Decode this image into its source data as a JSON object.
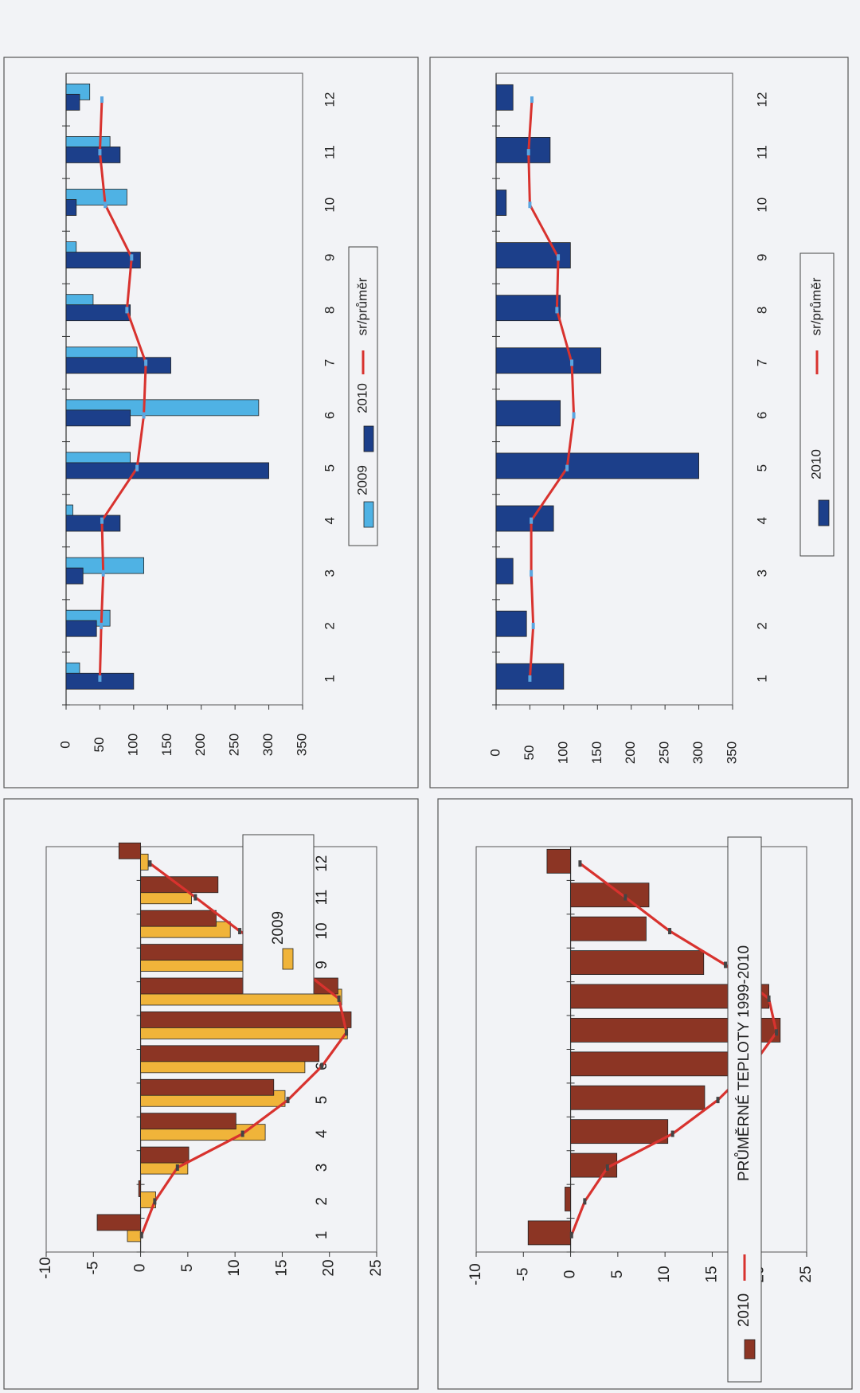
{
  "chart_data": [
    {
      "type": "bar",
      "categories": [
        "1",
        "2",
        "3",
        "4",
        "5",
        "6",
        "7",
        "8",
        "9",
        "10",
        "11",
        "12"
      ],
      "series": [
        {
          "name": "2009",
          "type": "bar",
          "values": [
            -1.4,
            1.6,
            5.0,
            13.2,
            15.3,
            17.4,
            21.9,
            21.3,
            17.0,
            9.5,
            5.4,
            0.8
          ]
        },
        {
          "name": "",
          "type": "bar",
          "values": [
            -4.6,
            -0.2,
            5.1,
            10.1,
            14.1,
            18.9,
            22.3,
            20.9,
            14.2,
            8.0,
            8.2,
            -2.3
          ]
        },
        {
          "name": "",
          "type": "line",
          "values": [
            0.1,
            1.5,
            3.9,
            10.8,
            15.6,
            19.2,
            21.8,
            21.0,
            16.4,
            10.5,
            5.8,
            1.0
          ]
        }
      ],
      "ylim": [
        -10,
        25
      ],
      "yticks": [
        "-10",
        "-5",
        "0",
        "5",
        "10",
        "15",
        "20",
        "25"
      ],
      "orientation": "rotated-90-ccw",
      "legend_position": "top-right"
    },
    {
      "type": "bar",
      "categories": [
        "1",
        "2",
        "3",
        "4",
        "5",
        "6",
        "7",
        "8",
        "9",
        "10",
        "11",
        "12"
      ],
      "series": [
        {
          "name": "2010",
          "type": "bar",
          "values": [
            -4.5,
            -0.6,
            4.9,
            10.3,
            14.2,
            18.9,
            22.2,
            21.0,
            14.1,
            8.0,
            8.3,
            -2.5
          ]
        },
        {
          "name": "PRŮMĚRNÉ TEPLOTY 1999-2010",
          "type": "line",
          "values": [
            0.1,
            1.5,
            3.9,
            10.8,
            15.6,
            19.2,
            21.8,
            21.0,
            16.4,
            10.5,
            5.8,
            1.0
          ]
        }
      ],
      "ylim": [
        -10,
        25
      ],
      "yticks": [
        "-10",
        "-5",
        "0",
        "5",
        "10",
        "15",
        "20",
        "25"
      ],
      "orientation": "rotated-90-ccw",
      "legend_position": "bottom"
    },
    {
      "type": "bar",
      "categories": [
        "1",
        "2",
        "3",
        "4",
        "5",
        "6",
        "7",
        "8",
        "9",
        "10",
        "11",
        "12"
      ],
      "series": [
        {
          "name": "2009",
          "type": "bar",
          "values": [
            20,
            65,
            115,
            10,
            95,
            285,
            105,
            40,
            15,
            90,
            65,
            35
          ]
        },
        {
          "name": "2010",
          "type": "bar",
          "values": [
            100,
            45,
            25,
            80,
            300,
            95,
            155,
            95,
            110,
            15,
            80,
            20
          ]
        },
        {
          "name": "sr/průměr",
          "type": "line",
          "values": [
            50,
            52,
            55,
            53,
            105,
            115,
            118,
            90,
            97,
            58,
            50,
            53
          ]
        }
      ],
      "ylim": [
        0,
        350
      ],
      "yticks": [
        "0",
        "50",
        "100",
        "150",
        "200",
        "250",
        "300",
        "350"
      ],
      "orientation": "rotated-90-ccw",
      "legend_position": "middle"
    },
    {
      "type": "bar",
      "categories": [
        "1",
        "2",
        "3",
        "4",
        "5",
        "6",
        "7",
        "8",
        "9",
        "10",
        "11",
        "12"
      ],
      "series": [
        {
          "name": "2010",
          "type": "bar",
          "values": [
            100,
            45,
            25,
            85,
            300,
            95,
            155,
            95,
            110,
            15,
            80,
            25
          ]
        },
        {
          "name": "sr/průměr",
          "type": "line",
          "values": [
            50,
            55,
            52,
            52,
            105,
            115,
            112,
            90,
            92,
            50,
            48,
            53
          ]
        }
      ],
      "ylim": [
        0,
        350
      ],
      "yticks": [
        "0",
        "50",
        "100",
        "150",
        "200",
        "250",
        "300",
        "350"
      ],
      "orientation": "rotated-90-ccw",
      "legend_position": "middle"
    }
  ],
  "colors": {
    "bar_2009_temp": "#f0b43a",
    "bar_2010_temp": "#8c3524",
    "avg_line": "#d8322e",
    "bar_2009_precip": "#4fb2e4",
    "bar_2010_precip": "#1c3f8a",
    "avg_marker": "#5aa6e0",
    "plot_bg": "#f2f3f6"
  }
}
